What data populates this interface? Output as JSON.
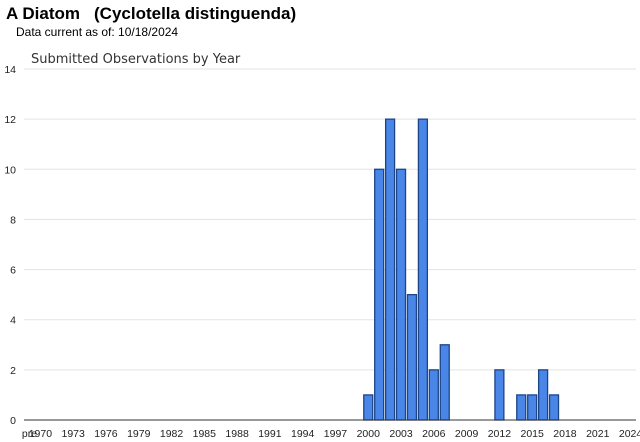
{
  "header": {
    "common_name": "A Diatom",
    "scientific_name": "(Cyclotella distinguenda)",
    "data_current_label": "Data current as of: 10/18/2024"
  },
  "chart_data": {
    "type": "bar",
    "title": "Submitted Observations by Year",
    "xlabel": "",
    "ylabel": "",
    "ylim": [
      0,
      14
    ],
    "yticks": [
      0,
      2,
      4,
      6,
      8,
      10,
      12,
      14
    ],
    "grid": true,
    "bar_color": "#4a86e8",
    "bar_edge_color": "#1c4587",
    "categories": [
      "pre",
      "1970",
      "1971",
      "1972",
      "1973",
      "1974",
      "1975",
      "1976",
      "1977",
      "1978",
      "1979",
      "1980",
      "1981",
      "1982",
      "1983",
      "1984",
      "1985",
      "1986",
      "1987",
      "1988",
      "1989",
      "1990",
      "1991",
      "1992",
      "1993",
      "1994",
      "1995",
      "1996",
      "1997",
      "1998",
      "1999",
      "2000",
      "2001",
      "2002",
      "2003",
      "2004",
      "2005",
      "2006",
      "2007",
      "2008",
      "2009",
      "2010",
      "2011",
      "2012",
      "2013",
      "2014",
      "2015",
      "2016",
      "2017",
      "2018",
      "2019",
      "2020",
      "2021",
      "2022",
      "2023",
      "2024"
    ],
    "values": [
      0,
      0,
      0,
      0,
      0,
      0,
      0,
      0,
      0,
      0,
      0,
      0,
      0,
      0,
      0,
      0,
      0,
      0,
      0,
      0,
      0,
      0,
      0,
      0,
      0,
      0,
      0,
      0,
      0,
      0,
      0,
      1,
      10,
      12,
      10,
      5,
      12,
      2,
      3,
      0,
      0,
      0,
      0,
      2,
      0,
      1,
      1,
      2,
      1,
      0,
      0,
      0,
      0,
      0,
      0,
      0
    ],
    "xtick_labels": [
      "pre",
      "1970",
      "1973",
      "1976",
      "1979",
      "1982",
      "1985",
      "1988",
      "1991",
      "1994",
      "1997",
      "2000",
      "2003",
      "2006",
      "2009",
      "2012",
      "2015",
      "2018",
      "2021",
      "2024"
    ]
  }
}
